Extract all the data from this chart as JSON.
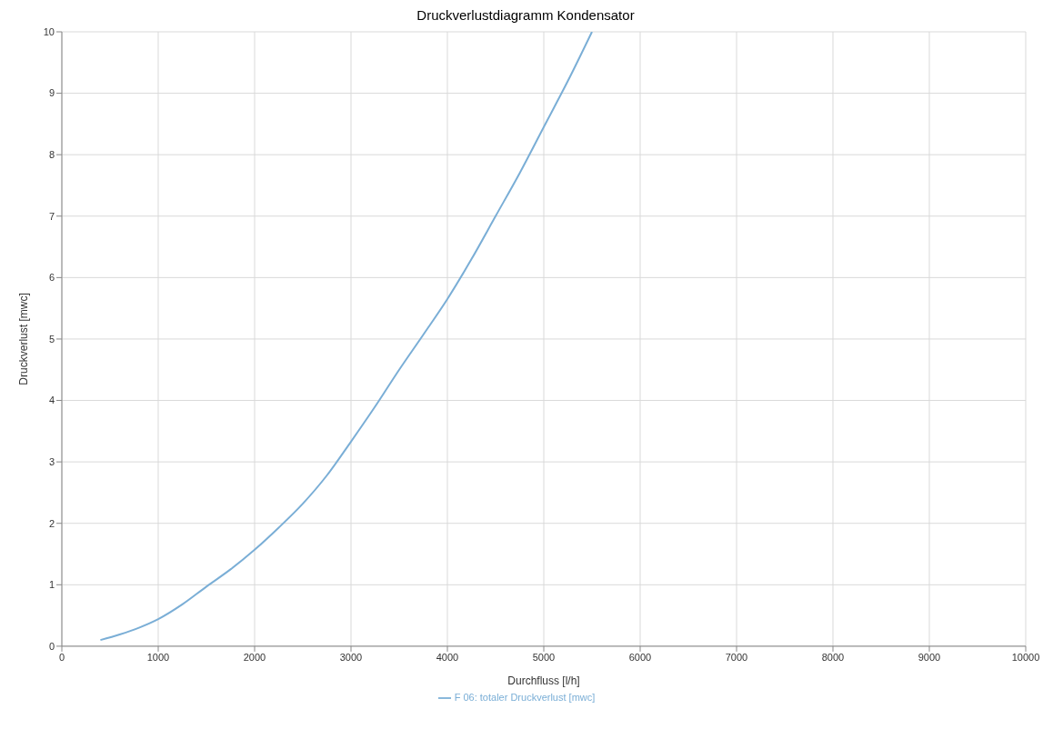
{
  "chart_data": {
    "type": "line",
    "title": "Druckverlustdiagramm Kondensator",
    "xlabel": "Durchfluss [l/h]",
    "ylabel": "Druckverlust [mwc]",
    "x": [
      400,
      600,
      800,
      1000,
      1250,
      1500,
      1750,
      2000,
      2250,
      2500,
      2750,
      3000,
      3250,
      3500,
      3750,
      4000,
      4250,
      4500,
      4750,
      5000,
      5250,
      5500
    ],
    "series": [
      {
        "name": "F 06: totaler Druckverlust [mwc]",
        "color": "#7aaed6",
        "values": [
          0.1,
          0.19,
          0.3,
          0.44,
          0.68,
          0.97,
          1.25,
          1.57,
          1.93,
          2.32,
          2.78,
          3.33,
          3.9,
          4.5,
          5.07,
          5.65,
          6.3,
          7.0,
          7.7,
          8.45,
          9.2,
          10
        ]
      }
    ],
    "xlim": [
      0,
      10000
    ],
    "xticks": [
      0,
      1000,
      2000,
      3000,
      4000,
      5000,
      6000,
      7000,
      8000,
      9000,
      10000
    ],
    "ylim": [
      0,
      10
    ],
    "yticks": [
      0,
      1,
      2,
      3,
      4,
      5,
      6,
      7,
      8,
      9,
      10
    ],
    "grid": true,
    "legend": "bottom",
    "marker": "none",
    "line_style": "solid"
  }
}
